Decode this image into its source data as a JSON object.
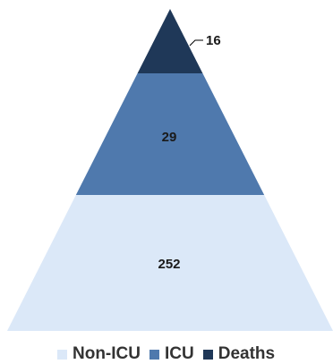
{
  "chart_data": {
    "type": "pyramid",
    "categories": [
      "Non-ICU",
      "ICU",
      "Deaths"
    ],
    "values": [
      252,
      29,
      16
    ],
    "series": [
      {
        "name": "Non-ICU",
        "value": 252,
        "color": "#dbe8f8"
      },
      {
        "name": "ICU",
        "value": 29,
        "color": "#4f79ad"
      },
      {
        "name": "Deaths",
        "value": 16,
        "color": "#1f3858"
      }
    ],
    "title": "",
    "legend": {
      "position": "bottom",
      "items": [
        "Non-ICU",
        "ICU",
        "Deaths"
      ]
    }
  }
}
